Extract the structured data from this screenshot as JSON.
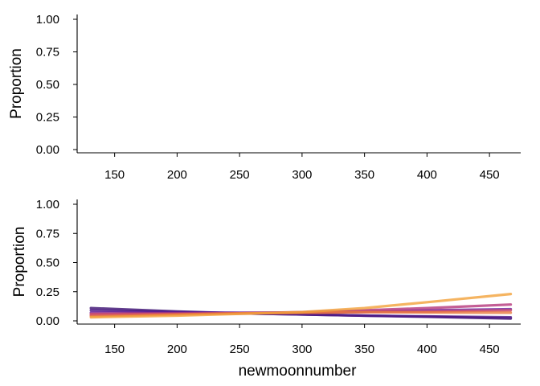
{
  "chart_data": [
    {
      "type": "line",
      "title": "",
      "xlabel": "",
      "ylabel": "Proportion",
      "xlim": [
        120,
        475
      ],
      "ylim": [
        0,
        1
      ],
      "x_ticks": [
        150,
        200,
        250,
        300,
        350,
        400,
        450
      ],
      "y_ticks": [
        "0.00",
        "0.25",
        "0.50",
        "0.75",
        "1.00"
      ],
      "grid": false,
      "series": []
    },
    {
      "type": "line",
      "title": "",
      "xlabel": "newmoonnumber",
      "ylabel": "Proportion",
      "xlim": [
        120,
        475
      ],
      "ylim": [
        0,
        1
      ],
      "x_ticks": [
        150,
        200,
        250,
        300,
        350,
        400,
        450
      ],
      "y_ticks": [
        "0.00",
        "0.25",
        "0.50",
        "0.75",
        "1.00"
      ],
      "grid": false,
      "series": [
        {
          "color": "#3b0f70",
          "x": [
            131,
            200,
            250,
            300,
            350,
            400,
            467
          ],
          "y": [
            0.11,
            0.08,
            0.065,
            0.055,
            0.045,
            0.035,
            0.02
          ]
        },
        {
          "color": "#4a1486",
          "x": [
            131,
            200,
            250,
            300,
            350,
            400,
            467
          ],
          "y": [
            0.09,
            0.075,
            0.065,
            0.055,
            0.045,
            0.038,
            0.03
          ]
        },
        {
          "color": "#6a1b9a",
          "x": [
            131,
            200,
            250,
            300,
            350,
            400,
            467
          ],
          "y": [
            0.07,
            0.07,
            0.07,
            0.072,
            0.08,
            0.09,
            0.1
          ]
        },
        {
          "color": "#b5367a",
          "x": [
            131,
            200,
            250,
            300,
            350,
            400,
            467
          ],
          "y": [
            0.05,
            0.06,
            0.065,
            0.075,
            0.09,
            0.11,
            0.14
          ]
        },
        {
          "color": "#d14e6a",
          "x": [
            131,
            200,
            250,
            300,
            350,
            400,
            467
          ],
          "y": [
            0.06,
            0.062,
            0.065,
            0.07,
            0.075,
            0.08,
            0.09
          ]
        },
        {
          "color": "#e8793e",
          "x": [
            131,
            200,
            250,
            300,
            350,
            400,
            467
          ],
          "y": [
            0.04,
            0.055,
            0.065,
            0.07,
            0.075,
            0.072,
            0.07
          ]
        },
        {
          "color": "#f3a13a",
          "x": [
            131,
            200,
            250,
            300,
            350,
            400,
            467
          ],
          "y": [
            0.03,
            0.045,
            0.06,
            0.075,
            0.11,
            0.16,
            0.23
          ]
        }
      ]
    }
  ]
}
